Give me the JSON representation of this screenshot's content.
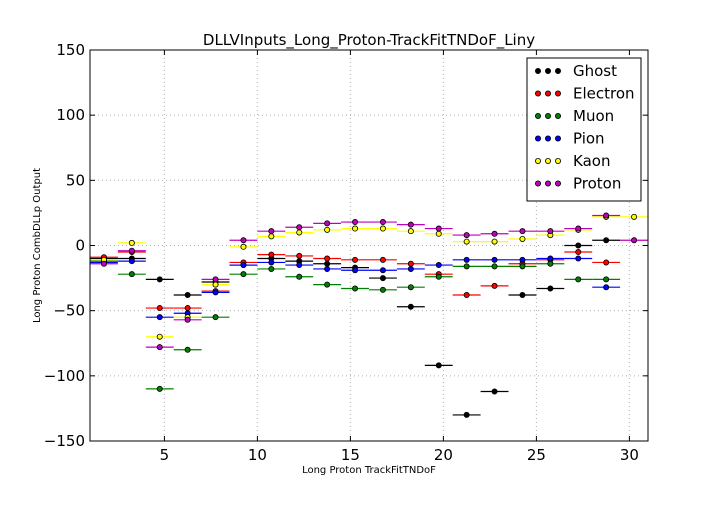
{
  "chart_data": {
    "type": "scatter",
    "title": "DLLVInputs_Long_Proton-TrackFitTNDoF_Liny",
    "xlabel": "Long Proton TrackFitTNDoF",
    "ylabel": "Long Proton CombDLLp Output",
    "xlim": [
      1,
      31
    ],
    "ylim": [
      -150,
      150
    ],
    "x_ticks": [
      5,
      10,
      15,
      20,
      25,
      30
    ],
    "y_ticks": [
      -150,
      -100,
      -50,
      0,
      50,
      100,
      150
    ],
    "grid": true,
    "legend_position": "top-right",
    "x": [
      1.75,
      3.25,
      4.75,
      6.25,
      7.75,
      9.25,
      10.75,
      12.25,
      13.75,
      15.25,
      16.75,
      18.25,
      19.75,
      21.25,
      22.75,
      24.25,
      25.75,
      27.25,
      28.75,
      30.25
    ],
    "x_half_width": 0.75,
    "series": [
      {
        "name": "Ghost",
        "color": "#000000",
        "values": [
          -10,
          -10,
          -26,
          -38,
          -28,
          -15,
          -10,
          -12,
          -14,
          -17,
          -25,
          -47,
          -92,
          -130,
          -112,
          -38,
          -33,
          0,
          4,
          null
        ]
      },
      {
        "name": "Electron",
        "color": "#ff0000",
        "values": [
          -9,
          -5,
          -48,
          -48,
          -35,
          -13,
          -7,
          -8,
          -10,
          -11,
          -11,
          -14,
          -22,
          -38,
          -31,
          -14,
          -11,
          -5,
          -13,
          null
        ]
      },
      {
        "name": "Muon",
        "color": "#008000",
        "values": [
          -12,
          -22,
          -110,
          -80,
          -55,
          -22,
          -18,
          -24,
          -30,
          -33,
          -34,
          -32,
          -24,
          -16,
          -16,
          -16,
          -14,
          -26,
          -26,
          null
        ]
      },
      {
        "name": "Pion",
        "color": "#0000ff",
        "values": [
          -13,
          -12,
          -55,
          -52,
          -36,
          -15,
          -13,
          -15,
          -18,
          -19,
          -19,
          -18,
          -15,
          -11,
          -11,
          -11,
          -10,
          -10,
          -32,
          null
        ]
      },
      {
        "name": "Kaon",
        "color": "#ffff00",
        "values": [
          -11,
          2,
          -70,
          -55,
          -30,
          -1,
          7,
          10,
          12,
          13,
          13,
          11,
          9,
          3,
          3,
          5,
          8,
          12,
          22,
          22
        ]
      },
      {
        "name": "Proton",
        "color": "#bf00bf",
        "values": [
          -14,
          -4,
          -78,
          -57,
          -26,
          4,
          11,
          14,
          17,
          18,
          18,
          16,
          13,
          8,
          9,
          11,
          11,
          13,
          23,
          4
        ]
      }
    ]
  }
}
